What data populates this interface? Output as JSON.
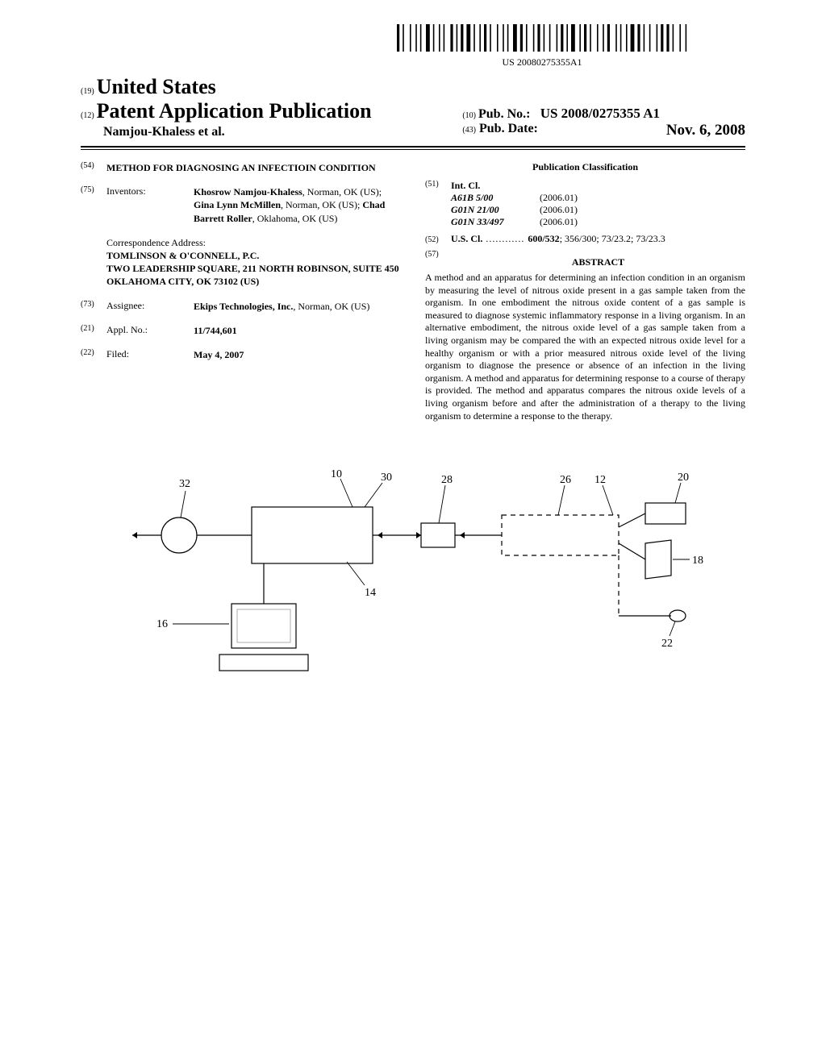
{
  "barcode": {
    "doc_no": "US 20080275355A1"
  },
  "header": {
    "line1_num": "(19)",
    "line1_text": "United States",
    "line2_num": "(12)",
    "line2_text": "Patent Application Publication",
    "authors": "Namjou-Khaless et al.",
    "pub_no_num": "(10)",
    "pub_no_label": "Pub. No.:",
    "pub_no_value": "US 2008/0275355 A1",
    "pub_date_num": "(43)",
    "pub_date_label": "Pub. Date:",
    "pub_date_value": "Nov. 6, 2008"
  },
  "left": {
    "title": {
      "num": "(54)",
      "text": "METHOD FOR DIAGNOSING AN INFECTIOIN CONDITION"
    },
    "inventors": {
      "num": "(75)",
      "label": "Inventors:",
      "text_segments": [
        {
          "t": "Khosrow Namjou-Khaless",
          "b": true
        },
        {
          "t": ", Norman, OK (US); ",
          "b": false
        },
        {
          "t": "Gina Lynn McMillen",
          "b": true
        },
        {
          "t": ", Norman, OK (US); ",
          "b": false
        },
        {
          "t": "Chad Barrett Roller",
          "b": true
        },
        {
          "t": ", Oklahoma, OK (US)",
          "b": false
        }
      ]
    },
    "correspondence": {
      "label": "Correspondence Address:",
      "lines": [
        "TOMLINSON & O'CONNELL, P.C.",
        "TWO LEADERSHIP SQUARE, 211 NORTH ROBINSON, SUITE 450",
        "OKLAHOMA CITY, OK 73102 (US)"
      ]
    },
    "assignee": {
      "num": "(73)",
      "label": "Assignee:",
      "text_segments": [
        {
          "t": "Ekips Technologies, Inc.",
          "b": true
        },
        {
          "t": ", Norman, OK (US)",
          "b": false
        }
      ]
    },
    "appl": {
      "num": "(21)",
      "label": "Appl. No.:",
      "value": "11/744,601"
    },
    "filed": {
      "num": "(22)",
      "label": "Filed:",
      "value": "May 4, 2007"
    }
  },
  "right": {
    "classification_header": "Publication Classification",
    "intcl": {
      "num": "(51)",
      "label": "Int. Cl.",
      "rows": [
        {
          "code": "A61B 5/00",
          "year": "(2006.01)"
        },
        {
          "code": "G01N 21/00",
          "year": "(2006.01)"
        },
        {
          "code": "G01N 33/497",
          "year": "(2006.01)"
        }
      ]
    },
    "uscl": {
      "num": "(52)",
      "label": "U.S. Cl.",
      "value_bold": "600/532",
      "value_rest": "; 356/300; 73/23.2; 73/23.3"
    },
    "abstract": {
      "num": "(57)",
      "header": "ABSTRACT",
      "text": "A method and an apparatus for determining an infection condition in an organism by measuring the level of nitrous oxide present in a gas sample taken from the organism. In one embodiment the nitrous oxide content of a gas sample is measured to diagnose systemic inflammatory response in a living organism. In an alternative embodiment, the nitrous oxide level of a gas sample taken from a living organism may be compared the with an expected nitrous oxide level for a healthy organism or with a prior measured nitrous oxide level of the living organism to diagnose the presence or absence of an infection in the living organism. A method and apparatus for determining response to a course of therapy is provided. The method and apparatus compares the nitrous oxide levels of a living organism before and after the administration of a therapy to the living organism to determine a response to the therapy."
    }
  },
  "figure": {
    "labels": [
      "32",
      "10",
      "30",
      "28",
      "26",
      "12",
      "20",
      "18",
      "22",
      "14",
      "16"
    ],
    "stroke": "#000000",
    "stroke_width": 1.2,
    "dashed": "6,5"
  }
}
